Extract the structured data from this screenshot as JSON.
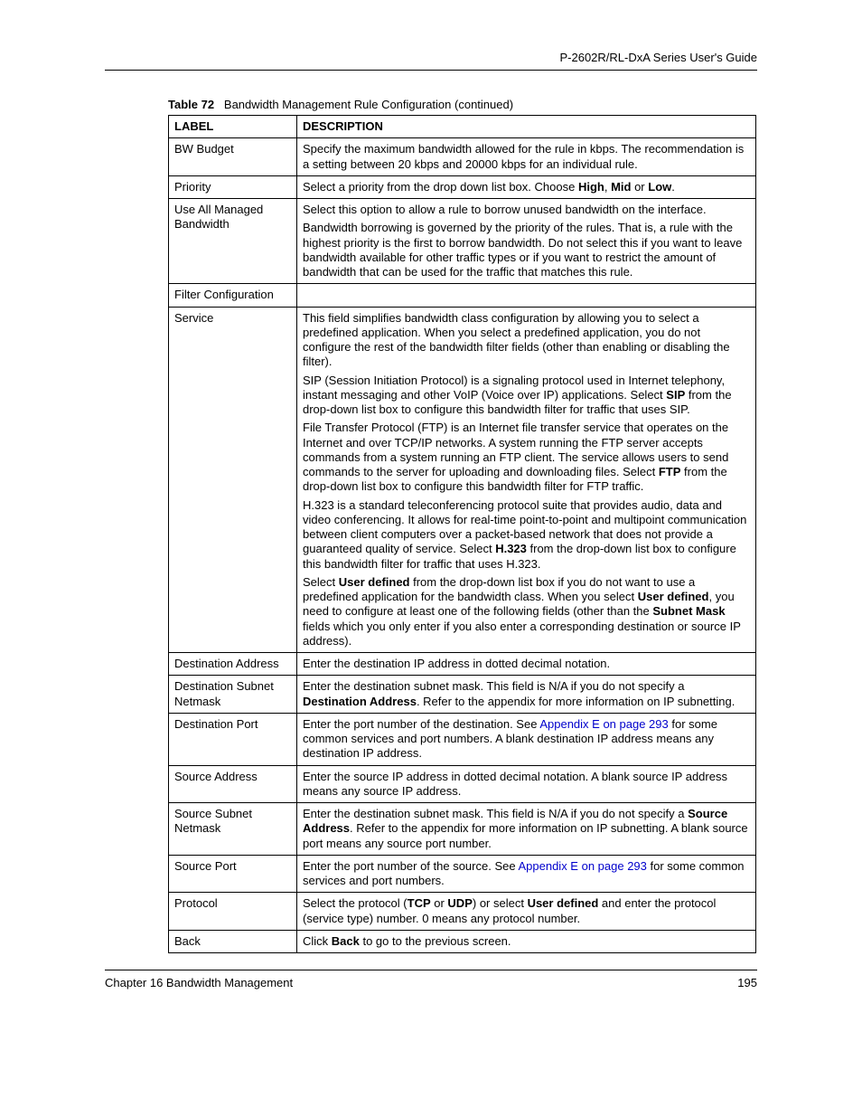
{
  "runningHeader": "P-2602R/RL-DxA Series User's Guide",
  "tableCaptionPrefix": "Table 72",
  "tableCaptionText": "Bandwidth Management Rule Configuration (continued)",
  "headerLabel": "LABEL",
  "headerDescription": "DESCRIPTION",
  "rows": {
    "bwBudget": {
      "label": "BW Budget",
      "p1": "Specify the maximum bandwidth allowed for the rule in kbps. The recommendation is a setting between 20 kbps and 20000 kbps for an individual rule."
    },
    "priority": {
      "label": "Priority",
      "p1a": "Select a priority from the drop down list box. Choose ",
      "high": "High",
      "mid": "Mid",
      "or": " or ",
      "low": "Low",
      "comma": ", ",
      "period": "."
    },
    "useAll": {
      "label": "Use All Managed Bandwidth",
      "p1": "Select this option to allow a rule to borrow unused bandwidth on the interface.",
      "p2": "Bandwidth borrowing is governed by the priority of the rules. That is, a rule with the highest priority is the first to borrow bandwidth. Do not select this if you want to leave bandwidth available for other traffic types or if you want to restrict the amount of bandwidth that can be used for the traffic that matches this rule."
    },
    "filterConfig": {
      "label": "Filter Configuration"
    },
    "service": {
      "label": "Service",
      "p1": "This field simplifies bandwidth class configuration by allowing you to select a predefined application. When you select a predefined application, you do not configure the rest of the bandwidth filter fields (other than enabling or disabling the filter).",
      "p2a": "SIP (Session Initiation Protocol) is a signaling protocol used in Internet telephony, instant messaging and other VoIP (Voice over IP) applications. Select ",
      "sip": "SIP",
      "p2b": " from the drop-down list box to configure this bandwidth filter for traffic that uses SIP.",
      "p3a": "File Transfer Protocol (FTP) is an Internet file transfer service that operates on the Internet and over TCP/IP networks. A system running the FTP server accepts commands from a system running an FTP client. The service allows users to send commands to the server for uploading and downloading files. Select ",
      "ftp": "FTP",
      "p3b": " from the drop-down list box to configure this bandwidth filter for FTP traffic.",
      "p4a": "H.323 is a standard teleconferencing protocol suite that provides audio, data and video conferencing. It allows for real-time point-to-point and multipoint communication between client computers over a packet-based network that does not provide a guaranteed quality of service. Select ",
      "h323": "H.323",
      "p4b": " from the drop-down list box to configure this bandwidth filter for traffic that uses H.323.",
      "p5a": "Select ",
      "userDefined1": "User defined",
      "p5b": " from the drop-down list box if you do not want to use a predefined application for the bandwidth class. When you select ",
      "userDefined2": "User defined",
      "p5c": ", you need to configure at least one of the following fields (other than the ",
      "subnetMask1": "Subnet Mask",
      "p5d": " fields which you only enter if you also enter a corresponding destination or source IP address)."
    },
    "destAddr": {
      "label": "Destination Address",
      "p1": "Enter the destination IP address in dotted decimal notation."
    },
    "destSubnet": {
      "label": "Destination Subnet Netmask",
      "p1a": "Enter the destination subnet mask. This field is N/A if you do not specify a ",
      "destAddrBold": "Destination Address",
      "p1b": ". Refer to the appendix for more information on IP subnetting."
    },
    "destPort": {
      "label": "Destination Port",
      "p1a": "Enter the port number of the destination. See ",
      "link": "Appendix E on page 293",
      "p1b": " for some common services and port numbers. A blank destination IP address means any destination IP address."
    },
    "srcAddr": {
      "label": "Source Address",
      "p1": "Enter the source IP address in dotted decimal notation. A blank source IP address means any source IP address."
    },
    "srcSubnet": {
      "label": "Source Subnet Netmask",
      "p1a": "Enter the destination subnet mask. This field is N/A if you do not specify a ",
      "srcAddrBold": "Source Address",
      "p1b": ". Refer to the appendix for more information on IP subnetting. A blank source port means any source port number."
    },
    "srcPort": {
      "label": "Source Port",
      "p1a": "Enter the port number of the source. See ",
      "link": "Appendix E on page 293",
      "p1b": " for some common services and port numbers."
    },
    "protocol": {
      "label": "Protocol",
      "p1a": "Select the protocol (",
      "tcp": "TCP",
      "or": " or ",
      "udp": "UDP",
      "p1b": ") or select ",
      "userDefined": "User defined",
      "p1c": " and enter the protocol (service type) number. 0 means any protocol number."
    },
    "back": {
      "label": "Back",
      "p1a": "Click ",
      "backBold": "Back",
      "p1b": " to go to the previous screen."
    }
  },
  "footerLeft": "Chapter 16 Bandwidth Management",
  "footerRight": "195"
}
